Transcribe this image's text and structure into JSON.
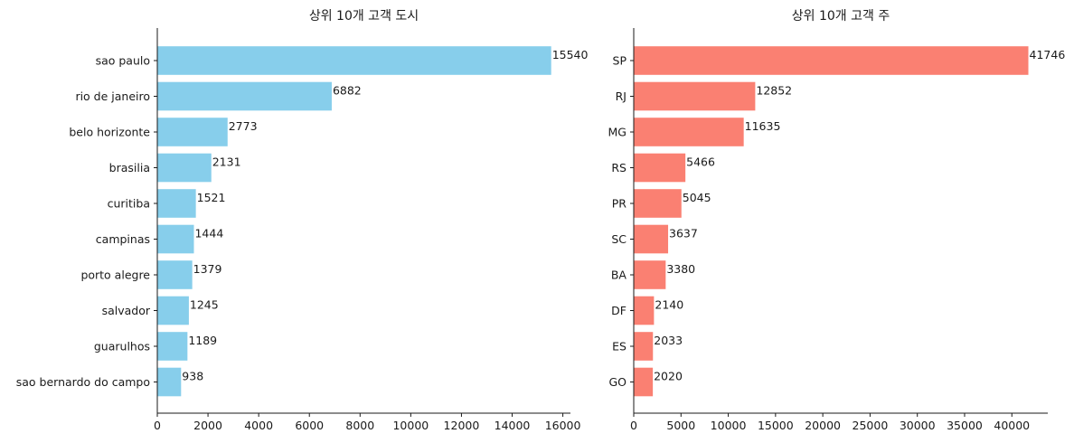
{
  "chart_data": [
    {
      "type": "bar",
      "orientation": "horizontal",
      "title": "상위 10개 고객 도시",
      "xlabel": "",
      "ylabel": "",
      "color": "#87CEEB",
      "categories": [
        "sao paulo",
        "rio de janeiro",
        "belo horizonte",
        "brasilia",
        "curitiba",
        "campinas",
        "porto alegre",
        "salvador",
        "guarulhos",
        "sao bernardo do campo"
      ],
      "values": [
        15540,
        6882,
        2773,
        2131,
        1521,
        1444,
        1379,
        1245,
        1189,
        938
      ],
      "xlim": [
        0,
        16300
      ],
      "xticks": [
        0,
        2000,
        4000,
        6000,
        8000,
        10000,
        12000,
        14000,
        16000
      ]
    },
    {
      "type": "bar",
      "orientation": "horizontal",
      "title": "상위 10개 고객 주",
      "xlabel": "",
      "ylabel": "",
      "color": "#FA8072",
      "categories": [
        "SP",
        "RJ",
        "MG",
        "RS",
        "PR",
        "SC",
        "BA",
        "DF",
        "ES",
        "GO"
      ],
      "values": [
        41746,
        12852,
        11635,
        5466,
        5045,
        3637,
        3380,
        2140,
        2033,
        2020
      ],
      "xlim": [
        0,
        43800
      ],
      "xticks": [
        0,
        5000,
        10000,
        15000,
        20000,
        25000,
        30000,
        35000,
        40000
      ]
    }
  ]
}
